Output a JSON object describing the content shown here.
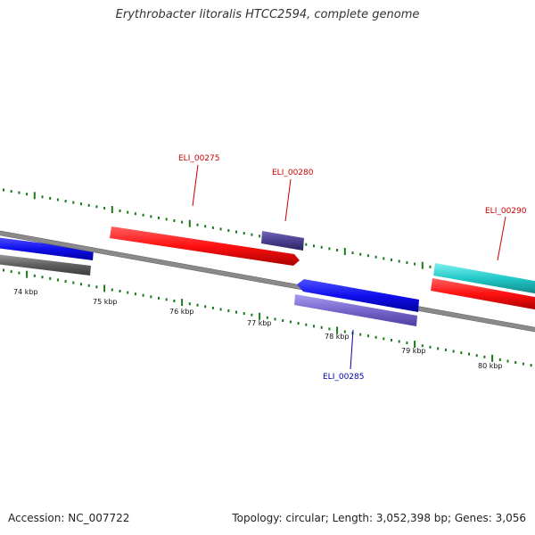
{
  "title": "Erythrobacter litoralis HTCC2594, complete genome",
  "footer": {
    "accession": "Accession: NC_007722",
    "summary": "Topology: circular; Length: 3,052,398 bp; Genes: 3,056"
  },
  "scale_labels": [
    "74 kbp",
    "75 kbp",
    "76 kbp",
    "77 kbp",
    "78 kbp",
    "79 kbp",
    "80 kbp"
  ],
  "genes": [
    {
      "name": "ELI_00275",
      "color": "#cc0000",
      "strand": "forward"
    },
    {
      "name": "ELI_00280",
      "color": "#cc0000",
      "strand": "forward"
    },
    {
      "name": "ELI_00285",
      "color": "#0000aa",
      "strand": "reverse"
    },
    {
      "name": "ELI_00290",
      "color": "#cc0000",
      "strand": "forward"
    }
  ],
  "colors": {
    "backbone": "#808080",
    "tick": "#1a7a1a",
    "forward_cds": "#ff1010",
    "reverse_cds": "#1010ee",
    "gene_box_light": "#7766cc",
    "gene_box_dark": "#4a3f8f",
    "gene_box_grey": "#606060",
    "gene_box_cyan": "#22c8c8"
  }
}
